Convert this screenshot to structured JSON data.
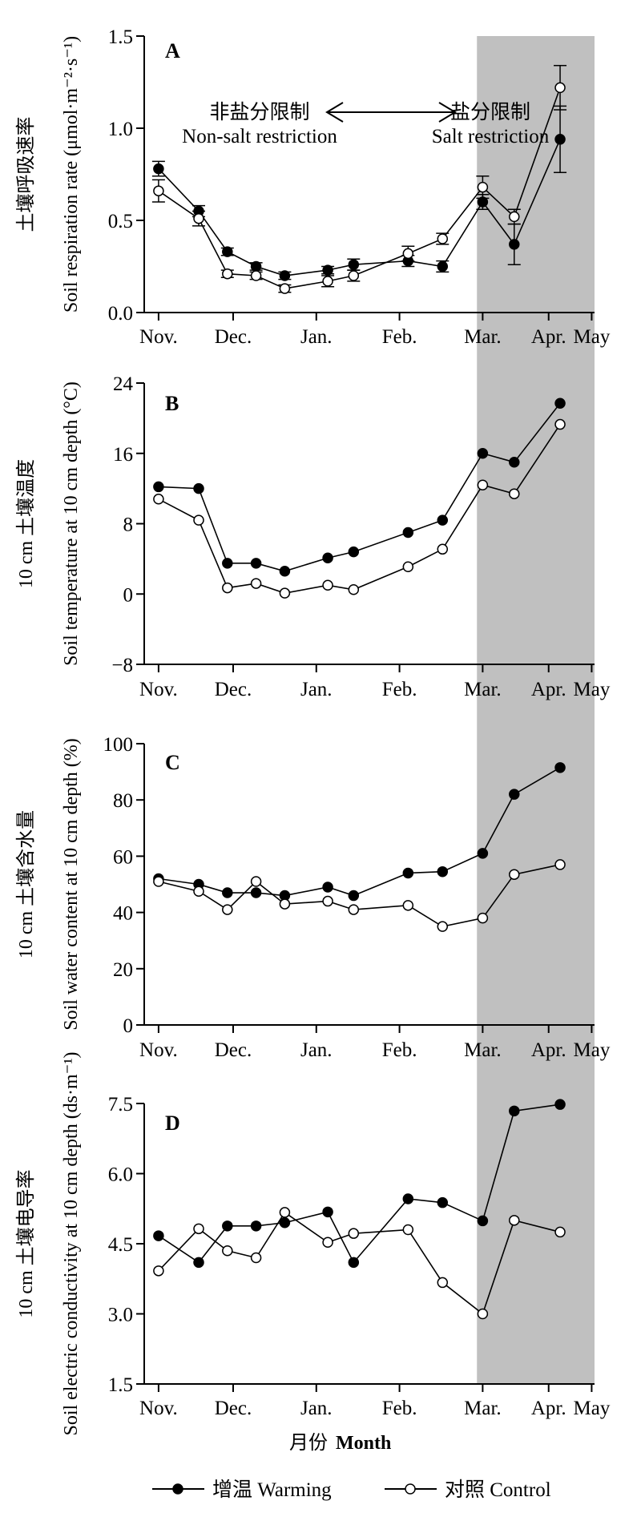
{
  "x_axis": {
    "months": [
      "Nov.",
      "Dec.",
      "Jan.",
      "Feb.",
      "Mar.",
      "Apr.",
      "May"
    ],
    "title_cn": "月份",
    "title_en": "Month"
  },
  "legend": {
    "warming": "增温 Warming",
    "control": "对照  Control"
  },
  "annotation": {
    "left_cn": "非盐分限制",
    "left_en": "Non-salt restriction",
    "right_cn": "盐分限制",
    "right_en": "Salt restriction"
  },
  "shading": {
    "color": "#c0c0c0",
    "from_day": 111,
    "to_day": 180
  },
  "chart_data": [
    {
      "type": "line",
      "panel": "A",
      "ylabel_cn": "土壤呼吸速率",
      "ylabel_en": "Soil respiration rate (μmol·m⁻²·s⁻¹)",
      "ylim": [
        0,
        1.5
      ],
      "yticks": [
        "0.0",
        "0.5",
        "1.0",
        "1.5"
      ],
      "x_days": [
        0,
        14,
        24,
        34,
        44,
        59,
        68,
        87,
        99,
        113,
        124,
        140
      ],
      "series": [
        {
          "name": "增温 Warming",
          "values": [
            0.78,
            0.55,
            0.33,
            0.25,
            0.2,
            0.23,
            0.26,
            0.28,
            0.25,
            0.6,
            0.37,
            0.94
          ],
          "errors": [
            0.04,
            0.03,
            0.02,
            0.02,
            0.02,
            0.02,
            0.03,
            0.03,
            0.03,
            0.04,
            0.11,
            0.18
          ]
        },
        {
          "name": "对照  Control",
          "values": [
            0.66,
            0.51,
            0.21,
            0.2,
            0.13,
            0.17,
            0.2,
            0.32,
            0.4,
            0.68,
            0.52,
            1.22
          ],
          "errors": [
            0.06,
            0.04,
            0.02,
            0.02,
            0.02,
            0.03,
            0.03,
            0.04,
            0.03,
            0.06,
            0.04,
            0.12
          ]
        }
      ]
    },
    {
      "type": "line",
      "panel": "B",
      "ylabel_cn": "10 cm 土壤温度",
      "ylabel_en": "Soil temperature at 10 cm depth (°C)",
      "ylim": [
        -8,
        24
      ],
      "yticks": [
        "−8",
        "0",
        "8",
        "16",
        "24"
      ],
      "x_days": [
        0,
        14,
        24,
        34,
        44,
        59,
        68,
        87,
        99,
        113,
        124,
        140
      ],
      "series": [
        {
          "name": "增温 Warming",
          "values": [
            12.2,
            12.0,
            3.5,
            3.5,
            2.6,
            4.1,
            4.8,
            7.0,
            8.4,
            16.0,
            15.0,
            21.7
          ]
        },
        {
          "name": "对照  Control",
          "values": [
            10.8,
            8.4,
            0.7,
            1.2,
            0.1,
            1.0,
            0.5,
            3.1,
            5.1,
            12.4,
            11.4,
            19.3
          ]
        }
      ]
    },
    {
      "type": "line",
      "panel": "C",
      "ylabel_cn": "10 cm 土壤含水量",
      "ylabel_en": "Soil water content at 10 cm depth (%)",
      "ylim": [
        0,
        100
      ],
      "yticks": [
        "0",
        "20",
        "40",
        "60",
        "80",
        "100"
      ],
      "x_days": [
        0,
        14,
        24,
        34,
        44,
        59,
        68,
        87,
        99,
        113,
        124,
        140
      ],
      "series": [
        {
          "name": "增温 Warming",
          "values": [
            52,
            50,
            47,
            47,
            46,
            49,
            46,
            54,
            54.5,
            61,
            82,
            91.5
          ]
        },
        {
          "name": "对照  Control",
          "values": [
            51,
            47.5,
            41,
            51,
            43,
            44,
            41,
            42.5,
            35,
            38,
            53.5,
            57
          ]
        }
      ]
    },
    {
      "type": "line",
      "panel": "D",
      "ylabel_cn": "10 cm 土壤电导率",
      "ylabel_en": "Soil electric conductivity at 10 cm depth (ds·m⁻¹)",
      "ylim": [
        1.5,
        7.5
      ],
      "yticks": [
        "1.5",
        "3.0",
        "4.5",
        "6.0",
        "7.5"
      ],
      "x_days": [
        0,
        14,
        24,
        34,
        44,
        59,
        68,
        87,
        99,
        113,
        124,
        140
      ],
      "series": [
        {
          "name": "增温 Warming",
          "values": [
            4.67,
            4.1,
            4.88,
            4.88,
            4.95,
            5.18,
            4.1,
            5.46,
            5.38,
            4.99,
            7.34,
            7.48
          ]
        },
        {
          "name": "对照  Control",
          "values": [
            3.92,
            4.82,
            4.35,
            4.2,
            5.17,
            4.53,
            4.72,
            4.8,
            3.67,
            3.0,
            5.0,
            4.75
          ]
        }
      ]
    }
  ]
}
